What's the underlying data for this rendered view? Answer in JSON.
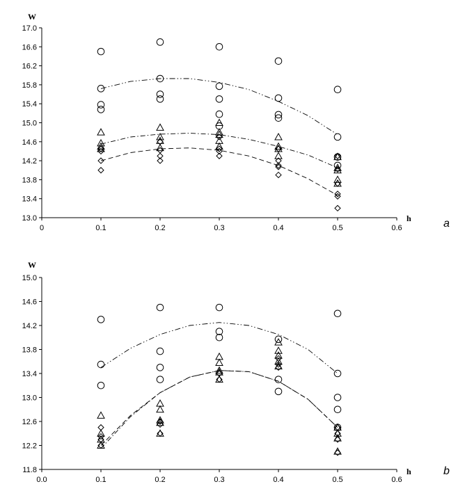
{
  "chart_data": [
    {
      "panel": "a",
      "type": "scatter",
      "xlabel": "h",
      "ylabel": "W",
      "xlim": [
        0,
        0.6
      ],
      "ylim": [
        13.0,
        17.0
      ],
      "xticks": [
        "0",
        "0.1",
        "0.2",
        "0.3",
        "0.4",
        "0.5",
        "0.6"
      ],
      "yticks": [
        "13.0",
        "13.4",
        "13.8",
        "14.2",
        "14.6",
        "15.0",
        "15.4",
        "15.8",
        "16.2",
        "16.6",
        "17.0"
      ],
      "series": [
        {
          "name": "circles",
          "marker": "circle",
          "points": [
            [
              0.1,
              16.5
            ],
            [
              0.1,
              15.72
            ],
            [
              0.1,
              15.38
            ],
            [
              0.1,
              15.28
            ],
            [
              0.2,
              16.7
            ],
            [
              0.2,
              15.93
            ],
            [
              0.2,
              15.6
            ],
            [
              0.2,
              15.5
            ],
            [
              0.3,
              16.6
            ],
            [
              0.3,
              15.77
            ],
            [
              0.3,
              15.5
            ],
            [
              0.3,
              15.18
            ],
            [
              0.3,
              14.93
            ],
            [
              0.4,
              16.3
            ],
            [
              0.4,
              15.52
            ],
            [
              0.4,
              15.17
            ],
            [
              0.4,
              15.1
            ],
            [
              0.5,
              15.7
            ],
            [
              0.5,
              14.7
            ],
            [
              0.5,
              14.28
            ],
            [
              0.5,
              14.1
            ]
          ],
          "trend": {
            "style": "dash-dot-dot",
            "x": [
              0.1,
              0.15,
              0.2,
              0.25,
              0.3,
              0.35,
              0.4,
              0.45,
              0.5
            ],
            "y": [
              15.72,
              15.87,
              15.93,
              15.93,
              15.85,
              15.7,
              15.45,
              15.15,
              14.75
            ]
          }
        },
        {
          "name": "triangles",
          "marker": "triangle",
          "points": [
            [
              0.1,
              14.8
            ],
            [
              0.1,
              14.57
            ],
            [
              0.1,
              14.5
            ],
            [
              0.1,
              14.45
            ],
            [
              0.2,
              14.9
            ],
            [
              0.2,
              14.7
            ],
            [
              0.2,
              14.62
            ],
            [
              0.2,
              14.47
            ],
            [
              0.3,
              15.0
            ],
            [
              0.3,
              14.8
            ],
            [
              0.3,
              14.75
            ],
            [
              0.3,
              14.62
            ],
            [
              0.3,
              14.5
            ],
            [
              0.4,
              14.7
            ],
            [
              0.4,
              14.5
            ],
            [
              0.4,
              14.45
            ],
            [
              0.4,
              14.3
            ],
            [
              0.5,
              14.28
            ],
            [
              0.5,
              14.05
            ],
            [
              0.5,
              14.0
            ],
            [
              0.5,
              13.8
            ],
            [
              0.5,
              13.72
            ]
          ],
          "trend": {
            "style": "dash-dot",
            "x": [
              0.1,
              0.15,
              0.2,
              0.25,
              0.3,
              0.35,
              0.4,
              0.45,
              0.5
            ],
            "y": [
              14.55,
              14.7,
              14.76,
              14.78,
              14.75,
              14.65,
              14.5,
              14.32,
              14.05
            ]
          }
        },
        {
          "name": "diamonds",
          "marker": "diamond",
          "points": [
            [
              0.1,
              14.45
            ],
            [
              0.1,
              14.4
            ],
            [
              0.1,
              14.2
            ],
            [
              0.1,
              14.0
            ],
            [
              0.2,
              14.6
            ],
            [
              0.2,
              14.42
            ],
            [
              0.2,
              14.3
            ],
            [
              0.2,
              14.2
            ],
            [
              0.3,
              14.7
            ],
            [
              0.3,
              14.45
            ],
            [
              0.3,
              14.4
            ],
            [
              0.3,
              14.3
            ],
            [
              0.4,
              14.45
            ],
            [
              0.4,
              14.2
            ],
            [
              0.4,
              14.1
            ],
            [
              0.4,
              14.07
            ],
            [
              0.4,
              13.9
            ],
            [
              0.5,
              14.3
            ],
            [
              0.5,
              14.02
            ],
            [
              0.5,
              13.72
            ],
            [
              0.5,
              13.5
            ],
            [
              0.5,
              13.45
            ],
            [
              0.5,
              13.2
            ]
          ],
          "trend": {
            "style": "dashed",
            "x": [
              0.1,
              0.15,
              0.2,
              0.25,
              0.3,
              0.35,
              0.4,
              0.45,
              0.5
            ],
            "y": [
              14.2,
              14.37,
              14.45,
              14.47,
              14.42,
              14.3,
              14.1,
              13.82,
              13.47
            ]
          }
        }
      ]
    },
    {
      "panel": "b",
      "type": "scatter",
      "xlabel": "h",
      "ylabel": "W",
      "xlim": [
        0,
        0.6
      ],
      "ylim": [
        11.8,
        15.0
      ],
      "xticks": [
        "0.0",
        "0.1",
        "0.2",
        "0.3",
        "0.4",
        "0.5",
        "0.6"
      ],
      "yticks": [
        "11.8",
        "12.2",
        "12.6",
        "13.0",
        "13.4",
        "13.8",
        "14.2",
        "14.6",
        "15.0"
      ],
      "series": [
        {
          "name": "circles",
          "marker": "circle",
          "points": [
            [
              0.1,
              14.3
            ],
            [
              0.1,
              13.55
            ],
            [
              0.1,
              13.2
            ],
            [
              0.2,
              14.5
            ],
            [
              0.2,
              13.77
            ],
            [
              0.2,
              13.5
            ],
            [
              0.2,
              13.3
            ],
            [
              0.3,
              14.5
            ],
            [
              0.3,
              14.1
            ],
            [
              0.3,
              14.0
            ],
            [
              0.4,
              13.97
            ],
            [
              0.4,
              13.3
            ],
            [
              0.4,
              13.1
            ],
            [
              0.5,
              14.4
            ],
            [
              0.5,
              13.4
            ],
            [
              0.5,
              13.0
            ],
            [
              0.5,
              12.8
            ],
            [
              0.5,
              12.5
            ]
          ],
          "trend": {
            "style": "dash-dot-dot",
            "x": [
              0.1,
              0.15,
              0.2,
              0.25,
              0.3,
              0.35,
              0.4,
              0.45,
              0.5
            ],
            "y": [
              13.5,
              13.82,
              14.05,
              14.2,
              14.25,
              14.2,
              14.05,
              13.8,
              13.4
            ]
          }
        },
        {
          "name": "triangles",
          "marker": "triangle",
          "points": [
            [
              0.1,
              12.7
            ],
            [
              0.1,
              12.4
            ],
            [
              0.1,
              12.3
            ],
            [
              0.1,
              12.2
            ],
            [
              0.2,
              12.9
            ],
            [
              0.2,
              12.8
            ],
            [
              0.2,
              12.62
            ],
            [
              0.2,
              12.58
            ],
            [
              0.2,
              12.4
            ],
            [
              0.3,
              13.68
            ],
            [
              0.3,
              13.58
            ],
            [
              0.3,
              13.45
            ],
            [
              0.3,
              13.42
            ],
            [
              0.3,
              13.3
            ],
            [
              0.4,
              13.92
            ],
            [
              0.4,
              13.78
            ],
            [
              0.4,
              13.7
            ],
            [
              0.4,
              13.6
            ],
            [
              0.4,
              13.52
            ],
            [
              0.5,
              12.5
            ],
            [
              0.5,
              12.4
            ],
            [
              0.5,
              12.32
            ],
            [
              0.5,
              12.1
            ]
          ],
          "trend": {
            "style": "dash-dot",
            "x": [
              0.1,
              0.15,
              0.2,
              0.25,
              0.3,
              0.35,
              0.4,
              0.45,
              0.5
            ],
            "y": [
              12.15,
              12.68,
              13.08,
              13.34,
              13.45,
              13.43,
              13.27,
              12.97,
              12.5
            ]
          }
        },
        {
          "name": "diamonds",
          "marker": "diamond",
          "points": [
            [
              0.1,
              12.5
            ],
            [
              0.1,
              12.35
            ],
            [
              0.1,
              12.3
            ],
            [
              0.1,
              12.2
            ],
            [
              0.2,
              12.6
            ],
            [
              0.2,
              12.55
            ],
            [
              0.2,
              12.4
            ],
            [
              0.3,
              13.4
            ],
            [
              0.3,
              13.3
            ],
            [
              0.4,
              13.65
            ],
            [
              0.4,
              13.55
            ],
            [
              0.4,
              13.5
            ],
            [
              0.5,
              12.5
            ],
            [
              0.5,
              12.4
            ],
            [
              0.5,
              12.3
            ],
            [
              0.5,
              12.08
            ]
          ],
          "trend": {
            "style": "dashed",
            "x": [
              0.1,
              0.15,
              0.2,
              0.25,
              0.3,
              0.35,
              0.4,
              0.45,
              0.5
            ],
            "y": [
              12.2,
              12.7,
              13.08,
              13.34,
              13.45,
              13.43,
              13.27,
              12.97,
              12.5
            ]
          }
        }
      ]
    }
  ]
}
